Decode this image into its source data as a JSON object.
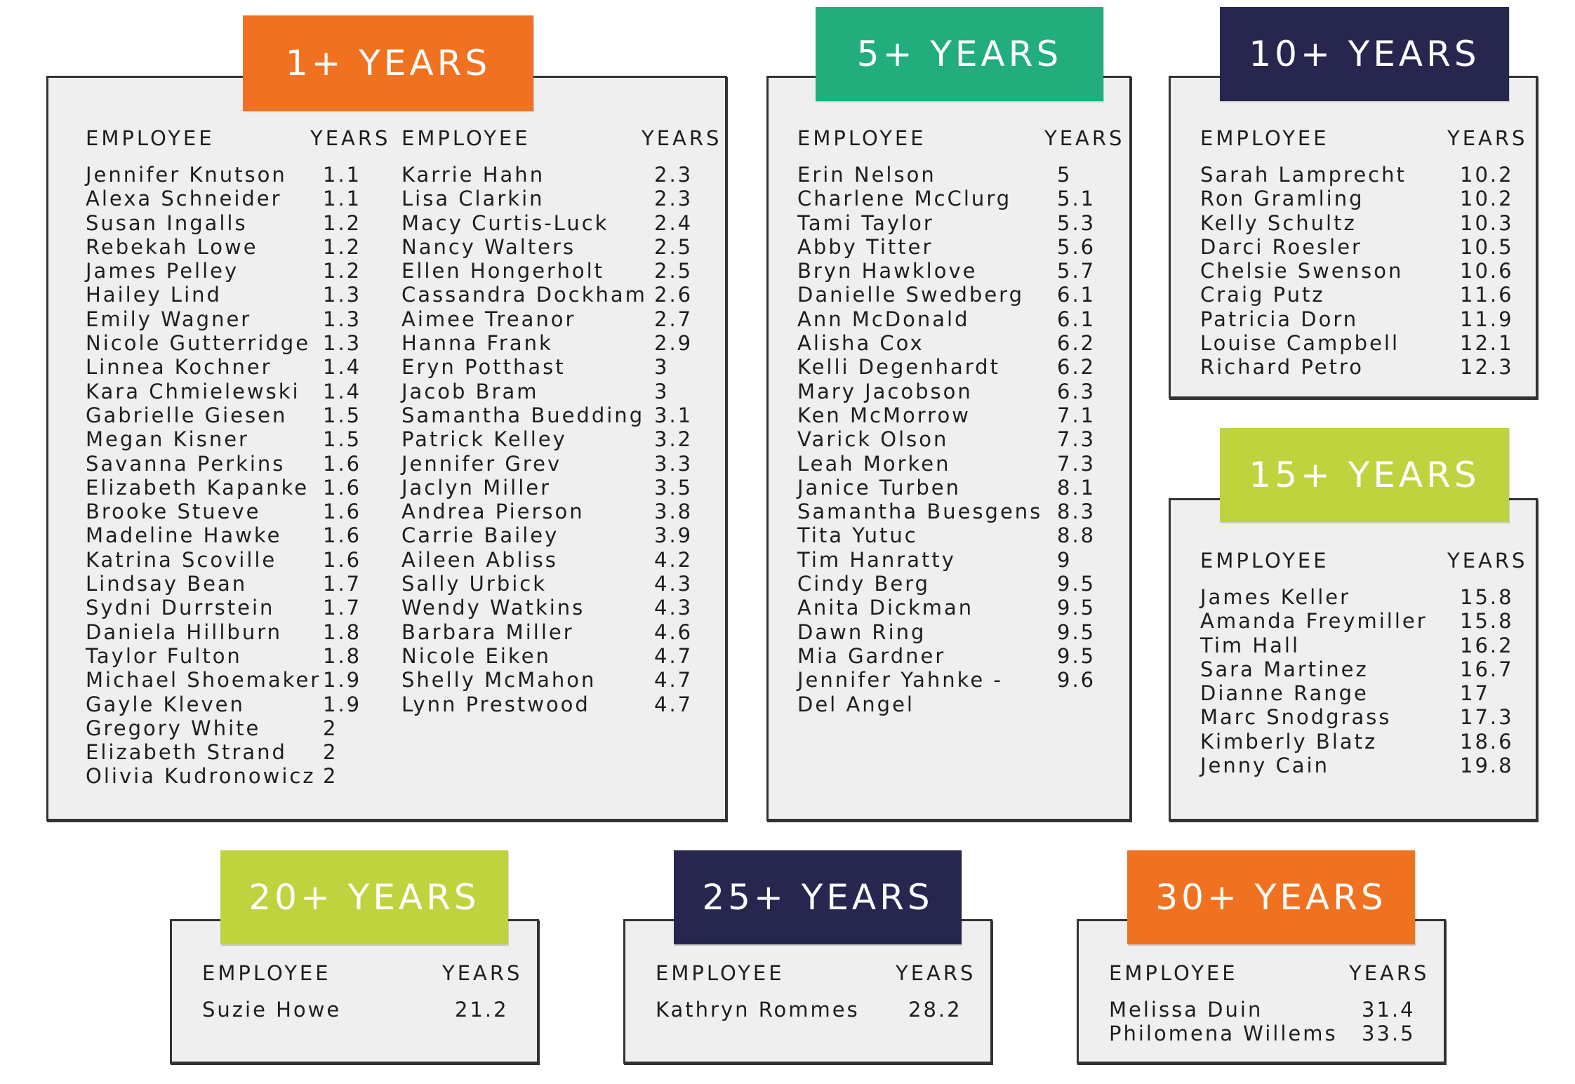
{
  "header_employee": "EMPLOYEE",
  "header_years": "YEARS",
  "groups": {
    "g1": {
      "label": "1+ YEARS",
      "color": "#f07221",
      "col1": [
        [
          "Jennifer Knutson",
          "1.1"
        ],
        [
          "Alexa Schneider",
          "1.1"
        ],
        [
          "Susan Ingalls",
          "1.2"
        ],
        [
          "Rebekah Lowe",
          "1.2"
        ],
        [
          "James Pelley",
          "1.2"
        ],
        [
          "Hailey Lind",
          "1.3"
        ],
        [
          "Emily Wagner",
          "1.3"
        ],
        [
          "Nicole Gutterridge",
          "1.3"
        ],
        [
          "Linnea Kochner",
          "1.4"
        ],
        [
          "Kara Chmielewski",
          "1.4"
        ],
        [
          "Gabrielle Giesen",
          "1.5"
        ],
        [
          "Megan Kisner",
          "1.5"
        ],
        [
          "Savanna Perkins",
          "1.6"
        ],
        [
          "Elizabeth Kapanke",
          "1.6"
        ],
        [
          "Brooke Stueve",
          "1.6"
        ],
        [
          "Madeline Hawke",
          "1.6"
        ],
        [
          "Katrina Scoville",
          "1.6"
        ],
        [
          "Lindsay Bean",
          "1.7"
        ],
        [
          "Sydni Durrstein",
          "1.7"
        ],
        [
          "Daniela Hillburn",
          "1.8"
        ],
        [
          "Taylor Fulton",
          "1.8"
        ],
        [
          "Michael Shoemaker",
          "1.9"
        ],
        [
          "Gayle Kleven",
          "1.9"
        ],
        [
          "Gregory White",
          "2"
        ],
        [
          "Elizabeth Strand",
          "2"
        ],
        [
          "Olivia Kudronowicz",
          "2"
        ]
      ],
      "col2": [
        [
          "Karrie Hahn",
          "2.3"
        ],
        [
          "Lisa Clarkin",
          "2.3"
        ],
        [
          "Macy Curtis-Luck",
          "2.4"
        ],
        [
          "Nancy Walters",
          "2.5"
        ],
        [
          "Ellen Hongerholt",
          "2.5"
        ],
        [
          "Cassandra Dockham",
          "2.6"
        ],
        [
          "Aimee Treanor",
          "2.7"
        ],
        [
          "Hanna Frank",
          "2.9"
        ],
        [
          "Eryn Potthast",
          "3"
        ],
        [
          "Jacob Bram",
          "3"
        ],
        [
          "Samantha Buedding",
          "3.1"
        ],
        [
          "Patrick Kelley",
          "3.2"
        ],
        [
          "Jennifer Grev",
          "3.3"
        ],
        [
          "Jaclyn Miller",
          "3.5"
        ],
        [
          "Andrea Pierson",
          "3.8"
        ],
        [
          "Carrie Bailey",
          "3.9"
        ],
        [
          "Aileen Abliss",
          "4.2"
        ],
        [
          "Sally Urbick",
          "4.3"
        ],
        [
          "Wendy Watkins",
          "4.3"
        ],
        [
          "Barbara Miller",
          "4.6"
        ],
        [
          "Nicole Eiken",
          "4.7"
        ],
        [
          "Shelly McMahon",
          "4.7"
        ],
        [
          "Lynn Prestwood",
          "4.7"
        ]
      ]
    },
    "g5": {
      "label": "5+ YEARS",
      "color": "#22ad7c",
      "col1": [
        [
          "Erin Nelson",
          "5"
        ],
        [
          "Charlene McClurg",
          "5.1"
        ],
        [
          "Tami Taylor",
          "5.3"
        ],
        [
          "Abby Titter",
          "5.6"
        ],
        [
          "Bryn Hawklove",
          "5.7"
        ],
        [
          "Danielle Swedberg",
          "6.1"
        ],
        [
          "Ann McDonald",
          "6.1"
        ],
        [
          "Alisha Cox",
          "6.2"
        ],
        [
          "Kelli Degenhardt",
          "6.2"
        ],
        [
          "Mary Jacobson",
          "6.3"
        ],
        [
          "Ken McMorrow",
          "7.1"
        ],
        [
          "Varick Olson",
          "7.3"
        ],
        [
          "Leah Morken",
          "7.3"
        ],
        [
          "Janice Turben",
          "8.1"
        ],
        [
          "Samantha Buesgens",
          "8.3"
        ],
        [
          "Tita Yutuc",
          "8.8"
        ],
        [
          "Tim Hanratty",
          "9"
        ],
        [
          "Cindy Berg",
          "9.5"
        ],
        [
          "Anita Dickman",
          "9.5"
        ],
        [
          "Dawn Ring",
          "9.5"
        ],
        [
          "Mia Gardner",
          "9.5"
        ],
        [
          "Jennifer Yahnke -",
          "9.6"
        ],
        [
          "Del Angel",
          ""
        ]
      ]
    },
    "g10": {
      "label": "10+ YEARS",
      "color": "#27264f",
      "col1": [
        [
          "Sarah Lamprecht",
          "10.2"
        ],
        [
          "Ron Gramling",
          "10.2"
        ],
        [
          "Kelly Schultz",
          "10.3"
        ],
        [
          "Darci Roesler",
          "10.5"
        ],
        [
          "Chelsie Swenson",
          "10.6"
        ],
        [
          "Craig Putz",
          "11.6"
        ],
        [
          "Patricia Dorn",
          "11.9"
        ],
        [
          "Louise Campbell",
          "12.1"
        ],
        [
          "Richard Petro",
          "12.3"
        ]
      ]
    },
    "g15": {
      "label": "15+ YEARS",
      "color": "#bfd33f",
      "col1": [
        [
          "James Keller",
          "15.8"
        ],
        [
          "Amanda Freymiller",
          "15.8"
        ],
        [
          "Tim Hall",
          "16.2"
        ],
        [
          "Sara Martinez",
          "16.7"
        ],
        [
          "Dianne Range",
          "17"
        ],
        [
          "Marc Snodgrass",
          "17.3"
        ],
        [
          "Kimberly Blatz",
          "18.6"
        ],
        [
          "Jenny Cain",
          "19.8"
        ]
      ]
    },
    "g20": {
      "label": "20+ YEARS",
      "color": "#bfd33f",
      "col1": [
        [
          "Suzie Howe",
          "21.2"
        ]
      ]
    },
    "g25": {
      "label": "25+ YEARS",
      "color": "#27264f",
      "col1": [
        [
          "Kathryn Rommes",
          "28.2"
        ]
      ]
    },
    "g30": {
      "label": "30+ YEARS",
      "color": "#f07221",
      "col1": [
        [
          "Melissa Duin",
          "31.4"
        ],
        [
          "Philomena Willems",
          "33.5"
        ]
      ]
    }
  }
}
